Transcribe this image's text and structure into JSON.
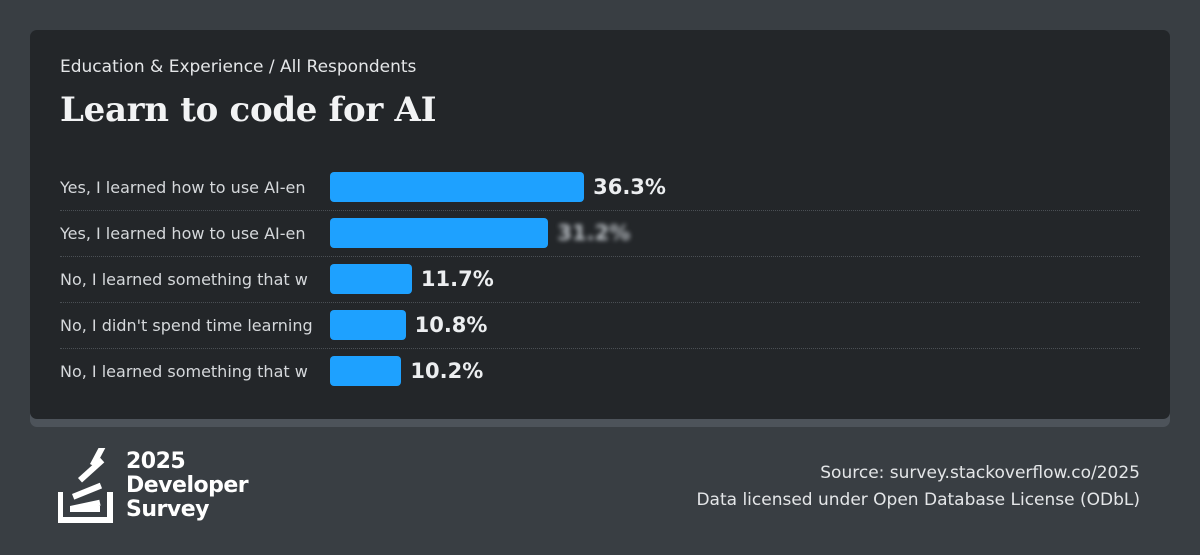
{
  "breadcrumb": "Education & Experience / All Respondents",
  "title": "Learn to code for AI",
  "chart_data": {
    "type": "bar",
    "orientation": "horizontal",
    "title": "Learn to code for AI",
    "categories": [
      "Yes, I learned how to use AI-en",
      "Yes, I learned how to use AI-en",
      "No, I learned something that w",
      "No, I didn't spend time learning",
      "No, I learned something that w"
    ],
    "values": [
      36.3,
      31.2,
      11.7,
      10.8,
      10.2
    ],
    "value_labels": [
      "36.3%",
      "",
      "11.7%",
      "10.8%",
      "10.2%"
    ],
    "value_label_obscured": [
      false,
      true,
      false,
      false,
      false
    ],
    "xlim": [
      0,
      100
    ],
    "bar_color": "#1ea1ff",
    "grid": false
  },
  "brand": {
    "line1": "2025",
    "line2": "Developer",
    "line3": "Survey"
  },
  "source": {
    "line1": "Source: survey.stackoverflow.co/2025",
    "line2": "Data licensed under Open Database License (ODbL)"
  }
}
